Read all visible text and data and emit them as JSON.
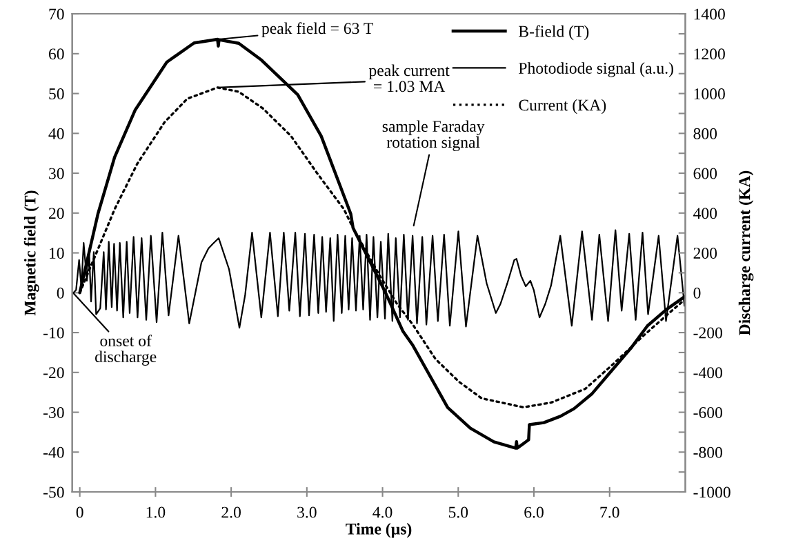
{
  "chart_data": {
    "type": "line",
    "xlabel": "Time (µs)",
    "ylabel": "Magnetic field (T)",
    "y2label": "Discharge current (KA)",
    "xlim": [
      -0.1,
      8.0
    ],
    "xticks": [
      0,
      {
        "value": 1,
        "label": "1.0"
      },
      {
        "value": 2,
        "label": "2.0"
      },
      {
        "value": 3,
        "label": "3.0"
      },
      {
        "value": 4,
        "label": "4.0"
      },
      {
        "value": 5,
        "label": "5.0"
      },
      {
        "value": 6,
        "label": "6.0"
      },
      {
        "value": 7,
        "label": "7.0"
      }
    ],
    "ylim": [
      -50,
      70
    ],
    "yticks": [
      -50,
      -40,
      -30,
      -20,
      -10,
      0,
      10,
      20,
      30,
      40,
      50,
      60,
      70
    ],
    "y2lim": [
      -1000,
      1400
    ],
    "y2ticks": [
      -1000,
      {
        "value": -900,
        "label": null
      },
      -800,
      {
        "value": -700,
        "label": null
      },
      -600,
      {
        "value": -500,
        "label": null
      },
      -400,
      {
        "value": -300,
        "label": null
      },
      -200,
      {
        "value": -100,
        "label": null
      },
      0,
      {
        "value": 100,
        "label": null
      },
      200,
      {
        "value": 300,
        "label": null
      },
      400,
      {
        "value": 500,
        "label": null
      },
      600,
      {
        "value": 700,
        "label": null
      },
      800,
      {
        "value": 900,
        "label": null
      },
      1000,
      {
        "value": 1100,
        "label": null
      },
      1200,
      {
        "value": 1300,
        "label": null
      },
      1400
    ],
    "grid": false,
    "legend": "top right",
    "series": [
      {
        "name": "B-field (T)",
        "color": "#000000",
        "line_style": "solid",
        "x": [
          0,
          0.24,
          0.46,
          0.73,
          1.15,
          1.51,
          1.82,
          1.83,
          1.84,
          2.1,
          2.4,
          2.88,
          3.19,
          3.58,
          3.61,
          4.04,
          4.27,
          4.4,
          4.86,
          5.16,
          5.47,
          5.76,
          5.77,
          5.78,
          5.93,
          5.94,
          6.13,
          6.35,
          6.53,
          6.77,
          6.98,
          7.29,
          7.5,
          7.75,
          7.99
        ],
        "values": [
          0,
          19.8,
          34,
          45.8,
          57.9,
          62.7,
          63.6,
          61.9,
          63.5,
          62.6,
          58.4,
          49.7,
          39.3,
          19.8,
          16.3,
          0,
          -9.7,
          -13.2,
          -28.8,
          -34,
          -37.4,
          -39.0,
          -37.4,
          -39.0,
          -36.9,
          -33.1,
          -32.6,
          -31,
          -29.1,
          -25.3,
          -20.6,
          -13.7,
          -8.3,
          -4.2,
          -1.0
        ]
      },
      {
        "name": "Photodiode signal (a.u.)",
        "color": "#000000",
        "line_style": "solid",
        "x": [
          -0.094,
          -0.049,
          -0.009,
          0.021,
          0.051,
          0.094,
          0.124,
          0.149,
          0.185,
          0.216,
          0.27,
          0.316,
          0.346,
          0.383,
          0.422,
          0.453,
          0.492,
          0.529,
          0.574,
          0.62,
          0.659,
          0.711,
          0.763,
          0.817,
          0.878,
          0.939,
          1.015,
          1.091,
          1.173,
          1.304,
          1.446,
          1.607,
          1.699,
          1.759,
          1.835,
          1.911,
          1.972,
          2.033,
          2.109,
          2.185,
          2.276,
          2.398,
          2.513,
          2.617,
          2.695,
          2.768,
          2.847,
          2.908,
          2.975,
          3.029,
          3.096,
          3.151,
          3.203,
          3.254,
          3.309,
          3.355,
          3.406,
          3.461,
          3.507,
          3.552,
          3.598,
          3.649,
          3.698,
          3.744,
          3.789,
          3.835,
          3.88,
          3.932,
          3.977,
          4.032,
          4.075,
          4.13,
          4.175,
          4.23,
          4.281,
          4.336,
          4.397,
          4.455,
          4.525,
          4.579,
          4.661,
          4.731,
          4.813,
          4.889,
          5.002,
          5.102,
          5.254,
          5.375,
          5.497,
          5.558,
          5.649,
          5.74,
          5.77,
          5.831,
          5.892,
          5.953,
          5.998,
          6.074,
          6.15,
          6.226,
          6.348,
          6.5,
          6.636,
          6.767,
          6.864,
          6.98,
          7.077,
          7.159,
          7.259,
          7.344,
          7.435,
          7.508,
          7.648,
          7.745,
          7.897,
          7.989
        ],
        "values": [
          -0.2,
          0.7,
          8.2,
          1.3,
          12.5,
          3.0,
          9.9,
          -2.2,
          10.2,
          -5.4,
          -3.9,
          10.2,
          -4.2,
          12.8,
          -3.6,
          12.3,
          -4.5,
          12.5,
          -6.2,
          12.8,
          -5.1,
          14.0,
          -6.2,
          13.7,
          -6.8,
          14.3,
          -7.4,
          15.1,
          -5.7,
          14.3,
          -7.7,
          7.6,
          11.1,
          12.3,
          13.7,
          9.4,
          5.9,
          -0.5,
          -8.8,
          -0.5,
          15.1,
          -6.2,
          15.1,
          -5.9,
          15.1,
          -4.5,
          15.1,
          -5.9,
          14.8,
          -5.7,
          14.6,
          -5.1,
          14.0,
          -4.8,
          13.7,
          -7.1,
          14.6,
          -5.1,
          14.3,
          -4.2,
          13.7,
          -4.5,
          14.3,
          -4.2,
          14.6,
          -6.8,
          14.0,
          -6.2,
          12.8,
          -6.5,
          14.8,
          -7.1,
          13.7,
          -6.2,
          14.6,
          -6.8,
          14.3,
          -7.7,
          14.0,
          -8.0,
          14.3,
          -7.1,
          14.6,
          -8.3,
          15.4,
          -8.5,
          14.3,
          2.4,
          -5.1,
          -2.8,
          2.4,
          8.2,
          8.5,
          4.2,
          1.6,
          3.0,
          0.7,
          -6.2,
          -2.8,
          1.8,
          14.3,
          -8.3,
          15.4,
          -6.8,
          14.6,
          -7.1,
          15.7,
          -4.5,
          14.8,
          -6.8,
          15.1,
          -5.4,
          14.3,
          -7.1,
          14.3,
          -3.3
        ]
      },
      {
        "name": "Current (KA)",
        "color": "#000000",
        "line_style": "dotted",
        "axis": "y2",
        "x": [
          0,
          0.46,
          0.76,
          1.12,
          1.42,
          1.82,
          2.1,
          2.42,
          2.79,
          3.13,
          3.49,
          3.61,
          3.95,
          4.19,
          4.4,
          4.7,
          5.01,
          5.31,
          5.86,
          6.23,
          6.68,
          7.05,
          7.44,
          7.75,
          7.96
        ],
        "values": [
          0,
          419,
          648,
          856,
          974,
          1030,
          1009,
          925,
          787,
          603,
          419,
          326,
          94,
          -55,
          -160,
          -333,
          -447,
          -530,
          -575,
          -551,
          -482,
          -357,
          -218,
          -114,
          -45
        ]
      }
    ],
    "annotations": [
      {
        "text": "peak field = 63 T",
        "x": 1.83,
        "y": 63.6
      },
      {
        "text": "peak current\n= 1.03 MA",
        "x": 1.82,
        "y": 51.5
      },
      "sample Faraday\nrotation signal",
      {
        "text": "onset of\ndischarge",
        "x": -0.09,
        "y": 0
      }
    ]
  }
}
